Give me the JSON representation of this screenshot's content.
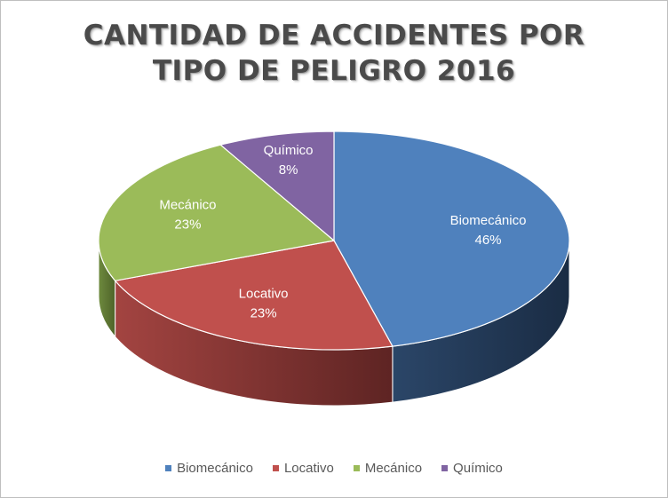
{
  "chart_data": {
    "type": "pie",
    "title_lines": [
      "CANTIDAD DE ACCIDENTES POR",
      "TIPO DE PELIGRO 2016"
    ],
    "categories": [
      "Biomecánico",
      "Locativo",
      "Mecánico",
      "Químico"
    ],
    "values": [
      46,
      23,
      23,
      8
    ],
    "labels": [
      "46%",
      "23%",
      "23%",
      "8%"
    ],
    "colors": [
      "#4f81bd",
      "#c0504d",
      "#9bbb59",
      "#8064a2"
    ],
    "style": "3d",
    "legend_position": "bottom"
  }
}
